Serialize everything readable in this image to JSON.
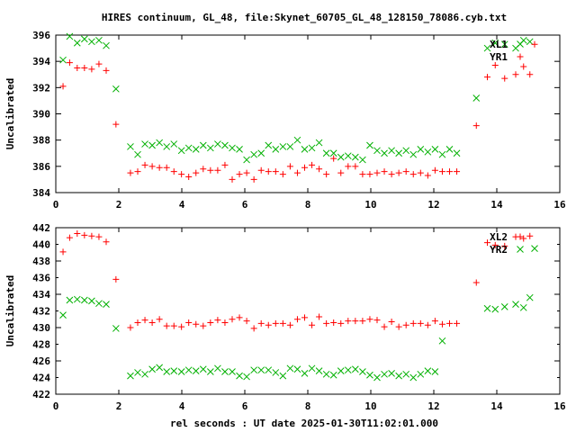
{
  "page": {
    "title": "HIRES continuum, GL_48, file:Skynet_60705_GL_48_128150_78086.cyb.txt",
    "xlabel": "rel seconds : UT date 2025-01-30T11:02:01.000"
  },
  "colors": {
    "series_red": "#ff0000",
    "series_green": "#00b000",
    "axis": "#000000",
    "background": "#ffffff"
  },
  "chart_data": [
    {
      "type": "scatter",
      "xlim": [
        0,
        16
      ],
      "ylim": [
        384,
        396
      ],
      "xticks": [
        0,
        2,
        4,
        6,
        8,
        10,
        12,
        14,
        16
      ],
      "yticks": [
        384,
        386,
        388,
        390,
        392,
        394,
        396
      ],
      "ylabel": "Uncalibrated",
      "grid": false,
      "legend_position": "top-right",
      "series": [
        {
          "name": "XL1",
          "marker": "x",
          "color": "#00b000",
          "points": [
            [
              0.23,
              394.1
            ],
            [
              0.44,
              395.9
            ],
            [
              0.68,
              395.4
            ],
            [
              0.91,
              395.7
            ],
            [
              1.14,
              395.5
            ],
            [
              1.37,
              395.6
            ],
            [
              1.6,
              395.2
            ],
            [
              1.91,
              391.9
            ],
            [
              2.37,
              387.5
            ],
            [
              2.6,
              386.9
            ],
            [
              2.83,
              387.7
            ],
            [
              3.06,
              387.6
            ],
            [
              3.29,
              387.8
            ],
            [
              3.52,
              387.5
            ],
            [
              3.75,
              387.7
            ],
            [
              3.99,
              387.2
            ],
            [
              4.22,
              387.4
            ],
            [
              4.45,
              387.3
            ],
            [
              4.68,
              387.6
            ],
            [
              4.91,
              387.4
            ],
            [
              5.14,
              387.7
            ],
            [
              5.37,
              387.6
            ],
            [
              5.6,
              387.4
            ],
            [
              5.83,
              387.3
            ],
            [
              6.06,
              386.5
            ],
            [
              6.29,
              386.9
            ],
            [
              6.52,
              387.0
            ],
            [
              6.75,
              387.6
            ],
            [
              6.98,
              387.3
            ],
            [
              7.21,
              387.5
            ],
            [
              7.44,
              387.5
            ],
            [
              7.67,
              388.0
            ],
            [
              7.9,
              387.3
            ],
            [
              8.13,
              387.4
            ],
            [
              8.36,
              387.8
            ],
            [
              8.59,
              387.0
            ],
            [
              8.82,
              387.0
            ],
            [
              9.05,
              386.7
            ],
            [
              9.28,
              386.8
            ],
            [
              9.51,
              386.7
            ],
            [
              9.74,
              386.5
            ],
            [
              9.97,
              387.6
            ],
            [
              10.2,
              387.2
            ],
            [
              10.43,
              387.0
            ],
            [
              10.66,
              387.2
            ],
            [
              10.89,
              387.0
            ],
            [
              11.12,
              387.2
            ],
            [
              11.35,
              386.9
            ],
            [
              11.58,
              387.3
            ],
            [
              11.81,
              387.1
            ],
            [
              12.04,
              387.3
            ],
            [
              12.27,
              386.9
            ],
            [
              12.5,
              387.3
            ],
            [
              12.73,
              387.0
            ],
            [
              13.35,
              391.2
            ],
            [
              13.7,
              395.0
            ],
            [
              13.95,
              395.4
            ],
            [
              14.25,
              395.3
            ],
            [
              14.6,
              395.0
            ],
            [
              14.85,
              395.6
            ],
            [
              15.05,
              395.5
            ]
          ]
        },
        {
          "name": "YR1",
          "marker": "+",
          "color": "#ff0000",
          "points": [
            [
              0.23,
              392.1
            ],
            [
              0.44,
              393.9
            ],
            [
              0.68,
              393.5
            ],
            [
              0.91,
              393.5
            ],
            [
              1.14,
              393.4
            ],
            [
              1.37,
              393.8
            ],
            [
              1.6,
              393.3
            ],
            [
              1.91,
              389.2
            ],
            [
              2.37,
              385.5
            ],
            [
              2.6,
              385.6
            ],
            [
              2.83,
              386.1
            ],
            [
              3.06,
              386.0
            ],
            [
              3.29,
              385.9
            ],
            [
              3.52,
              385.9
            ],
            [
              3.75,
              385.6
            ],
            [
              3.99,
              385.4
            ],
            [
              4.22,
              385.2
            ],
            [
              4.45,
              385.5
            ],
            [
              4.68,
              385.8
            ],
            [
              4.91,
              385.7
            ],
            [
              5.14,
              385.7
            ],
            [
              5.37,
              386.1
            ],
            [
              5.6,
              385.0
            ],
            [
              5.83,
              385.4
            ],
            [
              6.06,
              385.5
            ],
            [
              6.29,
              385.0
            ],
            [
              6.52,
              385.7
            ],
            [
              6.75,
              385.6
            ],
            [
              6.98,
              385.6
            ],
            [
              7.21,
              385.4
            ],
            [
              7.44,
              386.0
            ],
            [
              7.67,
              385.5
            ],
            [
              7.9,
              385.9
            ],
            [
              8.13,
              386.1
            ],
            [
              8.36,
              385.8
            ],
            [
              8.59,
              385.4
            ],
            [
              8.82,
              386.6
            ],
            [
              9.05,
              385.5
            ],
            [
              9.28,
              386.0
            ],
            [
              9.51,
              386.0
            ],
            [
              9.74,
              385.4
            ],
            [
              9.97,
              385.4
            ],
            [
              10.2,
              385.5
            ],
            [
              10.43,
              385.6
            ],
            [
              10.66,
              385.4
            ],
            [
              10.89,
              385.5
            ],
            [
              11.12,
              385.6
            ],
            [
              11.35,
              385.4
            ],
            [
              11.58,
              385.5
            ],
            [
              11.81,
              385.3
            ],
            [
              12.04,
              385.7
            ],
            [
              12.27,
              385.6
            ],
            [
              12.5,
              385.6
            ],
            [
              12.73,
              385.6
            ],
            [
              13.35,
              389.1
            ],
            [
              13.7,
              392.8
            ],
            [
              13.95,
              393.7
            ],
            [
              14.25,
              392.7
            ],
            [
              14.6,
              393.0
            ],
            [
              14.85,
              393.6
            ],
            [
              15.05,
              393.0
            ],
            [
              15.2,
              395.3
            ]
          ]
        }
      ]
    },
    {
      "type": "scatter",
      "xlim": [
        0,
        16
      ],
      "ylim": [
        422,
        442
      ],
      "xticks": [
        0,
        2,
        4,
        6,
        8,
        10,
        12,
        14,
        16
      ],
      "yticks": [
        422,
        426,
        430,
        434,
        438,
        442
      ],
      "yticks_minor": [
        424,
        428,
        432,
        436,
        440
      ],
      "ylabel": "Uncalibrated",
      "xlabel": "rel seconds : UT date 2025-01-30T11:02:01.000",
      "grid": false,
      "legend_position": "top-right",
      "series": [
        {
          "name": "XL2",
          "marker": "+",
          "color": "#ff0000",
          "points": [
            [
              0.23,
              439.1
            ],
            [
              0.44,
              440.8
            ],
            [
              0.68,
              441.3
            ],
            [
              0.91,
              441.1
            ],
            [
              1.14,
              441.0
            ],
            [
              1.37,
              440.9
            ],
            [
              1.6,
              440.3
            ],
            [
              1.91,
              435.8
            ],
            [
              2.37,
              430.0
            ],
            [
              2.6,
              430.6
            ],
            [
              2.83,
              430.9
            ],
            [
              3.06,
              430.6
            ],
            [
              3.29,
              431.0
            ],
            [
              3.52,
              430.2
            ],
            [
              3.75,
              430.2
            ],
            [
              3.99,
              430.1
            ],
            [
              4.22,
              430.6
            ],
            [
              4.45,
              430.4
            ],
            [
              4.68,
              430.2
            ],
            [
              4.91,
              430.6
            ],
            [
              5.14,
              430.9
            ],
            [
              5.37,
              430.6
            ],
            [
              5.6,
              431.0
            ],
            [
              5.83,
              431.2
            ],
            [
              6.06,
              430.8
            ],
            [
              6.29,
              429.9
            ],
            [
              6.52,
              430.5
            ],
            [
              6.75,
              430.3
            ],
            [
              6.98,
              430.5
            ],
            [
              7.21,
              430.5
            ],
            [
              7.44,
              430.3
            ],
            [
              7.67,
              431.0
            ],
            [
              7.9,
              431.2
            ],
            [
              8.13,
              430.3
            ],
            [
              8.36,
              431.3
            ],
            [
              8.59,
              430.5
            ],
            [
              8.82,
              430.6
            ],
            [
              9.05,
              430.5
            ],
            [
              9.28,
              430.8
            ],
            [
              9.51,
              430.8
            ],
            [
              9.74,
              430.8
            ],
            [
              9.97,
              431.0
            ],
            [
              10.2,
              430.9
            ],
            [
              10.43,
              430.1
            ],
            [
              10.66,
              430.7
            ],
            [
              10.89,
              430.1
            ],
            [
              11.12,
              430.3
            ],
            [
              11.35,
              430.5
            ],
            [
              11.58,
              430.5
            ],
            [
              11.81,
              430.3
            ],
            [
              12.04,
              430.8
            ],
            [
              12.27,
              430.4
            ],
            [
              12.5,
              430.5
            ],
            [
              12.73,
              430.5
            ],
            [
              13.35,
              435.4
            ],
            [
              13.7,
              440.2
            ],
            [
              13.95,
              439.9
            ],
            [
              14.25,
              439.8
            ],
            [
              14.6,
              440.9
            ],
            [
              14.85,
              440.7
            ],
            [
              15.05,
              441.0
            ]
          ]
        },
        {
          "name": "YR2",
          "marker": "x",
          "color": "#00b000",
          "points": [
            [
              0.23,
              431.5
            ],
            [
              0.44,
              433.3
            ],
            [
              0.68,
              433.4
            ],
            [
              0.91,
              433.3
            ],
            [
              1.14,
              433.2
            ],
            [
              1.37,
              432.9
            ],
            [
              1.6,
              432.8
            ],
            [
              1.91,
              429.9
            ],
            [
              2.37,
              424.2
            ],
            [
              2.6,
              424.6
            ],
            [
              2.83,
              424.4
            ],
            [
              3.06,
              425.0
            ],
            [
              3.29,
              425.2
            ],
            [
              3.52,
              424.7
            ],
            [
              3.75,
              424.8
            ],
            [
              3.99,
              424.7
            ],
            [
              4.22,
              424.9
            ],
            [
              4.45,
              424.8
            ],
            [
              4.68,
              425.0
            ],
            [
              4.91,
              424.7
            ],
            [
              5.14,
              425.1
            ],
            [
              5.37,
              424.7
            ],
            [
              5.6,
              424.7
            ],
            [
              5.83,
              424.2
            ],
            [
              6.06,
              424.1
            ],
            [
              6.29,
              424.9
            ],
            [
              6.52,
              424.9
            ],
            [
              6.75,
              424.9
            ],
            [
              6.98,
              424.6
            ],
            [
              7.21,
              424.2
            ],
            [
              7.44,
              425.1
            ],
            [
              7.67,
              425.0
            ],
            [
              7.9,
              424.5
            ],
            [
              8.13,
              425.1
            ],
            [
              8.36,
              424.8
            ],
            [
              8.59,
              424.4
            ],
            [
              8.82,
              424.3
            ],
            [
              9.05,
              424.8
            ],
            [
              9.28,
              424.9
            ],
            [
              9.51,
              425.0
            ],
            [
              9.74,
              424.7
            ],
            [
              9.97,
              424.3
            ],
            [
              10.2,
              424.0
            ],
            [
              10.43,
              424.4
            ],
            [
              10.66,
              424.5
            ],
            [
              10.89,
              424.2
            ],
            [
              11.12,
              424.4
            ],
            [
              11.35,
              424.0
            ],
            [
              11.58,
              424.4
            ],
            [
              11.81,
              424.8
            ],
            [
              12.04,
              424.7
            ],
            [
              12.27,
              428.4
            ],
            [
              13.7,
              432.3
            ],
            [
              13.95,
              432.2
            ],
            [
              14.25,
              432.5
            ],
            [
              14.6,
              432.8
            ],
            [
              14.85,
              432.4
            ],
            [
              15.05,
              433.6
            ],
            [
              15.2,
              439.5
            ]
          ]
        }
      ]
    }
  ]
}
